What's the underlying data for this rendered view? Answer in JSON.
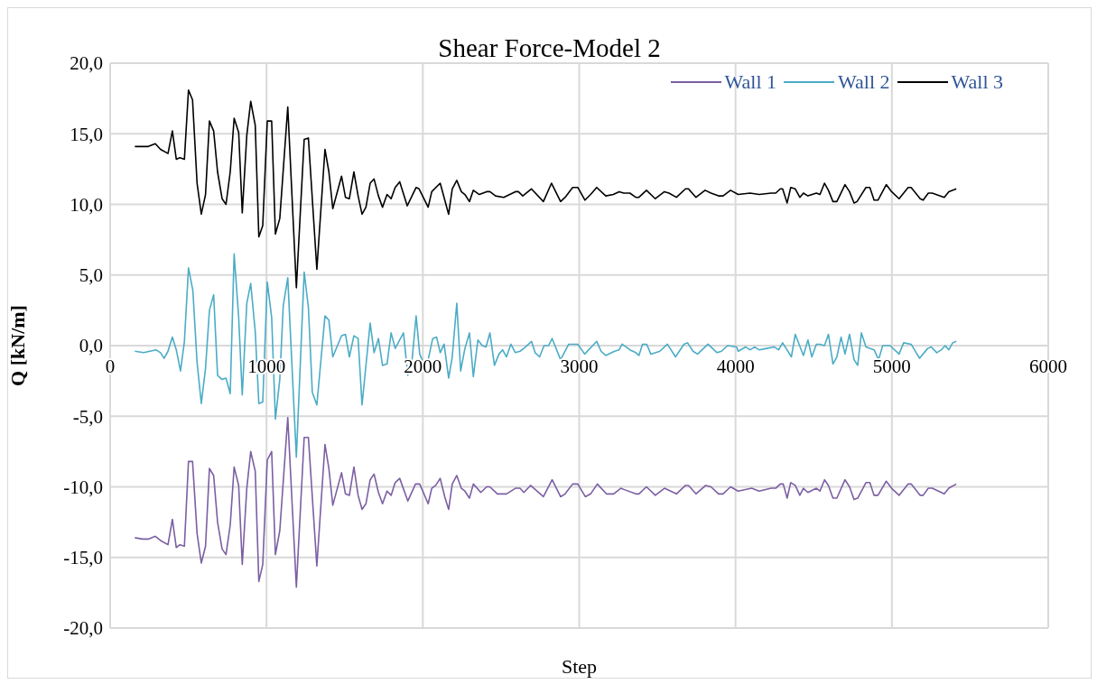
{
  "chart_data": {
    "type": "line",
    "title": "Shear Force-Model 2",
    "xlabel": "Step",
    "ylabel": "Q [kN/m]",
    "xlim": [
      0,
      6000
    ],
    "xticks": [
      0,
      1000,
      2000,
      3000,
      4000,
      5000,
      6000
    ],
    "ylim": [
      -20,
      20
    ],
    "yticks": [
      {
        "value": -20,
        "label": "-20,0"
      },
      {
        "value": -15,
        "label": "-15,0"
      },
      {
        "value": -10,
        "label": "-10,0"
      },
      {
        "value": -5,
        "label": "-5,0"
      },
      {
        "value": 0,
        "label": "0,0"
      },
      {
        "value": 5,
        "label": "5,0"
      },
      {
        "value": 10,
        "label": "10,0"
      },
      {
        "value": 15,
        "label": "15,0"
      },
      {
        "value": 20,
        "label": "20,0"
      }
    ],
    "grid": true,
    "legend": "top right",
    "line_style": "solid",
    "series": [
      {
        "name": "Wall 1",
        "color": "#7b5fa3",
        "x": [
          158,
          206,
          244,
          289,
          322,
          370,
          398,
          423,
          446,
          475,
          501,
          527,
          556,
          583,
          610,
          635,
          662,
          687,
          716,
          741,
          768,
          793,
          822,
          845,
          874,
          899,
          928,
          951,
          976,
          1005,
          1033,
          1057,
          1085,
          1136,
          1191,
          1241,
          1268,
          1322,
          1374,
          1399,
          1424,
          1480,
          1505,
          1530,
          1559,
          1586,
          1611,
          1636,
          1663,
          1688,
          1716,
          1742,
          1771,
          1797,
          1823,
          1852,
          1904,
          1953,
          1980,
          2034,
          2057,
          2082,
          2111,
          2140,
          2165,
          2188,
          2217,
          2246,
          2269,
          2298,
          2323,
          2371,
          2408,
          2429,
          2477,
          2535,
          2592,
          2621,
          2646,
          2689,
          2771,
          2827,
          2881,
          2910,
          2958,
          2991,
          3039,
          3073,
          3116,
          3174,
          3220,
          3266,
          3289,
          3362,
          3382,
          3430,
          3487,
          3545,
          3622,
          3680,
          3699,
          3747,
          3809,
          3843,
          3891,
          3920,
          3968,
          4017,
          4103,
          4151,
          4228,
          4257,
          4286,
          4305,
          4330,
          4353,
          4382,
          4411,
          4434,
          4463,
          4517,
          4540,
          4569,
          4594,
          4623,
          4648,
          4700,
          4729,
          4758,
          4781,
          4834,
          4859,
          4886,
          4911,
          4964,
          4998,
          5046,
          5104,
          5123,
          5181,
          5200,
          5233,
          5258,
          5335,
          5364,
          5412
        ],
        "values": [
          -13.6,
          -13.7,
          -13.7,
          -13.5,
          -13.8,
          -14.1,
          -12.3,
          -14.3,
          -14.1,
          -14.2,
          -8.2,
          -8.2,
          -13.3,
          -15.4,
          -14.2,
          -8.7,
          -9.2,
          -12.5,
          -14.4,
          -14.8,
          -12.7,
          -8.6,
          -9.9,
          -15.5,
          -10.1,
          -7.5,
          -8.9,
          -16.7,
          -15.5,
          -8.1,
          -7.5,
          -14.8,
          -13.1,
          -5.1,
          -17.1,
          -6.5,
          -6.5,
          -15.6,
          -7.0,
          -8.7,
          -11.3,
          -9.0,
          -10.5,
          -10.6,
          -8.6,
          -10.6,
          -11.6,
          -11.2,
          -9.5,
          -9.1,
          -10.4,
          -11.2,
          -10.3,
          -10.6,
          -9.7,
          -9.4,
          -11.0,
          -9.8,
          -9.8,
          -11.2,
          -10.1,
          -9.9,
          -9.4,
          -10.7,
          -11.6,
          -9.8,
          -9.2,
          -10.1,
          -10.3,
          -10.8,
          -9.8,
          -10.4,
          -10.0,
          -10.0,
          -10.5,
          -10.5,
          -10.1,
          -10.1,
          -10.4,
          -9.9,
          -10.7,
          -9.5,
          -10.7,
          -10.5,
          -9.8,
          -9.8,
          -10.7,
          -10.5,
          -9.8,
          -10.5,
          -10.5,
          -10.1,
          -10.2,
          -10.5,
          -10.5,
          -10.0,
          -10.6,
          -10.1,
          -10.5,
          -9.9,
          -9.9,
          -10.5,
          -9.9,
          -10.0,
          -10.5,
          -10.5,
          -10.0,
          -10.3,
          -10.1,
          -10.3,
          -10.1,
          -10.1,
          -9.8,
          -9.8,
          -10.8,
          -9.7,
          -9.9,
          -10.6,
          -10.1,
          -10.4,
          -10.1,
          -10.3,
          -9.5,
          -9.9,
          -10.8,
          -10.8,
          -9.5,
          -10.0,
          -10.9,
          -10.8,
          -9.7,
          -9.7,
          -10.6,
          -10.6,
          -9.6,
          -10.1,
          -10.6,
          -9.8,
          -9.8,
          -10.6,
          -10.6,
          -10.1,
          -10.1,
          -10.5,
          -10.1,
          -9.8
        ]
      },
      {
        "name": "Wall 2",
        "color": "#4bacc6",
        "x": [
          158,
          215,
          293,
          322,
          345,
          370,
          398,
          423,
          450,
          475,
          501,
          529,
          556,
          583,
          610,
          635,
          662,
          687,
          716,
          741,
          768,
          793,
          822,
          845,
          874,
          899,
          928,
          951,
          976,
          1005,
          1033,
          1057,
          1085,
          1107,
          1136,
          1191,
          1241,
          1268,
          1293,
          1322,
          1374,
          1399,
          1424,
          1480,
          1505,
          1530,
          1559,
          1586,
          1611,
          1663,
          1688,
          1716,
          1742,
          1771,
          1797,
          1823,
          1876,
          1904,
          1932,
          1957,
          1980,
          2011,
          2034,
          2063,
          2088,
          2111,
          2136,
          2165,
          2188,
          2217,
          2242,
          2269,
          2298,
          2323,
          2352,
          2380,
          2404,
          2429,
          2458,
          2487,
          2510,
          2535,
          2563,
          2592,
          2621,
          2646,
          2695,
          2718,
          2747,
          2775,
          2804,
          2827,
          2881,
          2933,
          2991,
          3035,
          3112,
          3140,
          3170,
          3226,
          3255,
          3275,
          3324,
          3362,
          3382,
          3405,
          3432,
          3458,
          3516,
          3564,
          3616,
          3670,
          3693,
          3728,
          3757,
          3824,
          3862,
          3882,
          3910,
          3949,
          4007,
          4017,
          4065,
          4093,
          4122,
          4151,
          4199,
          4248,
          4276,
          4301,
          4357,
          4382,
          4434,
          4463,
          4488,
          4517,
          4540,
          4569,
          4594,
          4623,
          4648,
          4675,
          4700,
          4729,
          4758,
          4781,
          4805,
          4834,
          4886,
          4915,
          4941,
          4988,
          5046,
          5075,
          5123,
          5177,
          5229,
          5252,
          5287,
          5316,
          5341,
          5364,
          5389,
          5412
        ],
        "values": [
          -0.4,
          -0.5,
          -0.3,
          -0.5,
          -0.9,
          -0.4,
          0.6,
          -0.3,
          -1.8,
          0.3,
          5.5,
          3.9,
          -1.2,
          -4.1,
          -1.6,
          2.5,
          3.6,
          -2.1,
          -2.4,
          -2.3,
          -3.4,
          6.5,
          2.0,
          -3.5,
          3.0,
          4.4,
          1.0,
          -4.1,
          -4.0,
          4.5,
          2.0,
          -5.2,
          -2.4,
          2.8,
          4.8,
          -7.9,
          5.2,
          2.7,
          -3.3,
          -4.2,
          2.1,
          1.8,
          -0.8,
          0.7,
          0.8,
          -0.8,
          0.7,
          0.5,
          -4.2,
          1.6,
          -0.5,
          0.5,
          -1.4,
          -1.3,
          0.9,
          -0.2,
          0.9,
          -2.1,
          -0.9,
          2.1,
          -0.6,
          -1.4,
          -1.0,
          0.5,
          0.6,
          -0.5,
          0.1,
          -2.3,
          -0.8,
          3.0,
          -1.8,
          -0.2,
          0.9,
          -2.2,
          0.4,
          0.0,
          -0.1,
          0.9,
          -1.4,
          -0.6,
          -0.3,
          -0.8,
          0.1,
          -0.5,
          -0.4,
          -0.2,
          0.3,
          -0.5,
          -0.8,
          0.0,
          0.0,
          0.5,
          -1.0,
          0.1,
          0.1,
          -0.6,
          0.3,
          -0.4,
          -0.7,
          -0.4,
          -0.3,
          0.1,
          -0.3,
          -0.5,
          -0.7,
          0.1,
          0.1,
          -0.6,
          -0.4,
          0.1,
          -0.8,
          0.1,
          0.2,
          -0.4,
          -0.6,
          0.1,
          -0.3,
          -0.5,
          -0.4,
          0.0,
          -0.1,
          -0.4,
          -0.1,
          -0.3,
          -0.1,
          -0.3,
          -0.2,
          -0.1,
          -0.3,
          0.2,
          -0.8,
          0.8,
          -0.7,
          0.4,
          -0.8,
          0.1,
          0.1,
          0.0,
          0.8,
          -1.3,
          -0.8,
          0.6,
          -0.6,
          0.8,
          -1.0,
          -1.4,
          0.9,
          -0.1,
          -0.3,
          -1.0,
          0.0,
          0.0,
          -0.6,
          0.2,
          0.1,
          -0.9,
          -0.2,
          -0.1,
          -0.5,
          -0.3,
          0.0,
          -0.3,
          0.2,
          0.3
        ]
      },
      {
        "name": "Wall 3",
        "color": "#000000",
        "x": [
          158,
          206,
          244,
          289,
          322,
          370,
          398,
          423,
          446,
          475,
          501,
          527,
          556,
          583,
          610,
          635,
          662,
          687,
          716,
          741,
          768,
          793,
          822,
          845,
          874,
          899,
          928,
          951,
          976,
          1005,
          1033,
          1057,
          1085,
          1136,
          1191,
          1241,
          1268,
          1322,
          1374,
          1399,
          1424,
          1480,
          1505,
          1530,
          1559,
          1586,
          1611,
          1636,
          1663,
          1688,
          1716,
          1742,
          1771,
          1797,
          1823,
          1852,
          1900,
          1957,
          1976,
          2034,
          2057,
          2111,
          2165,
          2188,
          2217,
          2246,
          2269,
          2298,
          2323,
          2361,
          2408,
          2429,
          2465,
          2517,
          2592,
          2611,
          2639,
          2694,
          2771,
          2823,
          2881,
          2910,
          2958,
          2991,
          3037,
          3073,
          3112,
          3170,
          3218,
          3256,
          3285,
          3324,
          3362,
          3382,
          3430,
          3487,
          3545,
          3574,
          3622,
          3680,
          3699,
          3747,
          3805,
          3843,
          3891,
          3920,
          3968,
          4017,
          4093,
          4151,
          4228,
          4257,
          4286,
          4301,
          4330,
          4353,
          4382,
          4411,
          4434,
          4463,
          4517,
          4540,
          4569,
          4594,
          4623,
          4648,
          4700,
          4729,
          4758,
          4777,
          4834,
          4859,
          4886,
          4911,
          4964,
          4998,
          5046,
          5104,
          5123,
          5181,
          5200,
          5233,
          5258,
          5335,
          5364,
          5412
        ],
        "values": [
          14.1,
          14.1,
          14.1,
          14.3,
          13.9,
          13.6,
          15.2,
          13.2,
          13.3,
          13.2,
          18.1,
          17.4,
          11.5,
          9.3,
          10.7,
          15.9,
          15.2,
          12.3,
          10.4,
          10.0,
          12.3,
          16.1,
          15.1,
          9.4,
          14.9,
          17.3,
          15.6,
          7.7,
          8.5,
          15.9,
          15.9,
          7.9,
          9.0,
          16.9,
          4.1,
          14.6,
          14.7,
          5.4,
          13.9,
          12.3,
          9.7,
          12.0,
          10.5,
          10.4,
          12.3,
          10.6,
          9.3,
          9.8,
          11.5,
          11.8,
          10.6,
          9.8,
          10.7,
          10.4,
          11.2,
          11.6,
          9.9,
          11.2,
          11.1,
          9.8,
          10.9,
          11.5,
          9.3,
          11.1,
          11.7,
          10.9,
          10.7,
          10.2,
          11.0,
          10.7,
          10.9,
          10.9,
          10.6,
          10.5,
          10.9,
          10.9,
          10.6,
          11.1,
          10.2,
          11.5,
          10.2,
          10.5,
          11.2,
          11.2,
          10.3,
          10.7,
          11.2,
          10.6,
          10.7,
          10.9,
          10.8,
          10.8,
          10.5,
          10.5,
          11.0,
          10.4,
          10.9,
          10.8,
          10.5,
          11.1,
          11.1,
          10.5,
          11.0,
          10.8,
          10.6,
          10.6,
          11.0,
          10.7,
          10.8,
          10.7,
          10.8,
          10.8,
          11.1,
          11.1,
          10.1,
          11.2,
          11.1,
          10.5,
          10.8,
          10.6,
          10.8,
          10.7,
          11.5,
          11.0,
          10.2,
          10.2,
          11.4,
          10.9,
          10.1,
          10.2,
          11.2,
          11.2,
          10.3,
          10.3,
          11.4,
          10.9,
          10.4,
          11.2,
          11.2,
          10.4,
          10.3,
          10.8,
          10.8,
          10.5,
          10.9,
          11.1
        ]
      }
    ]
  }
}
